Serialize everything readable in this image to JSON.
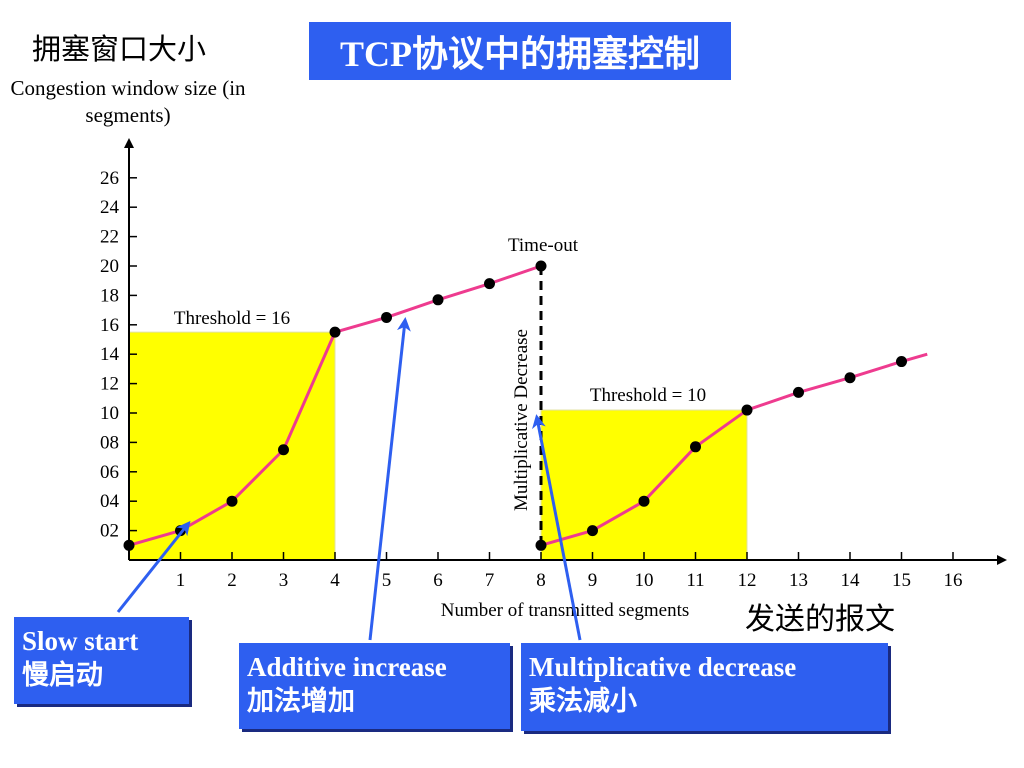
{
  "title": "TCP协议中的拥塞控制",
  "chart_data": {
    "type": "line",
    "ylabel_cn": "拥塞窗口大小",
    "ylabel": "Congestion window size (in segments)",
    "xlabel": "Number of transmitted segments",
    "xlabel_cn": "发送的报文",
    "x_ticks": [
      "1",
      "2",
      "3",
      "4",
      "5",
      "6",
      "7",
      "8",
      "9",
      "10",
      "11",
      "12",
      "13",
      "14",
      "15",
      "16"
    ],
    "y_ticks": [
      "02",
      "04",
      "06",
      "08",
      "10",
      "12",
      "14",
      "16",
      "18",
      "20",
      "22",
      "24",
      "26"
    ],
    "xlim": [
      0,
      16
    ],
    "ylim": [
      0,
      26
    ],
    "series": [
      {
        "x": [
          0,
          1,
          2,
          3,
          4,
          5,
          6,
          7,
          8
        ],
        "y": [
          1,
          2,
          4,
          7.5,
          15.5,
          16.5,
          17.7,
          18.8,
          20
        ]
      },
      {
        "x": [
          8,
          9,
          10,
          11,
          12,
          13,
          14,
          15
        ],
        "y": [
          1,
          2,
          4,
          7.7,
          10.2,
          11.4,
          12.4,
          13.5
        ],
        "extend_to_x": 15.5,
        "extend_to_y": 14
      }
    ],
    "thresholds": [
      {
        "label": "Threshold = 16",
        "x_start": 0,
        "x_end": 4,
        "y": 15.5
      },
      {
        "label": "Threshold = 10",
        "x_start": 8,
        "x_end": 12,
        "y": 10.2
      }
    ],
    "timeout": {
      "label": "Time-out",
      "x": 8,
      "y_top": 20,
      "y_bottom": 1
    },
    "vertical_annotation": "Multiplicative Decrease",
    "colors": {
      "line": "#ee3b8f",
      "region": "#ffff00",
      "arrow": "#2e5ff0",
      "point": "#000000"
    }
  },
  "callouts": {
    "slow_start": {
      "en": "Slow start",
      "cn": "慢启动"
    },
    "additive": {
      "en": "Additive increase",
      "cn": "加法增加"
    },
    "multiplicative": {
      "en": "Multiplicative decrease",
      "cn": "乘法减小"
    }
  }
}
